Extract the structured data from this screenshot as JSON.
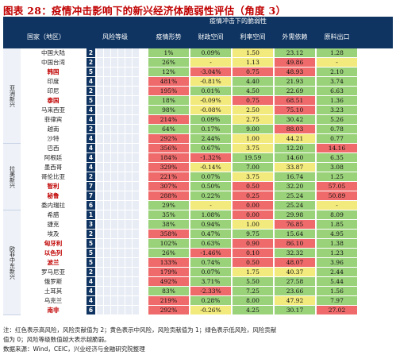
{
  "title": "图表 28：疫情冲击影响下的新兴经济体脆弱性评估（角度 3）",
  "header": {
    "group": "疫情冲击下的脆弱性",
    "region": "国家（地区）",
    "risk_level": "风险等级",
    "columns": [
      "疫情形势",
      "财政空间",
      "利率空间",
      "外需依赖",
      "原料出口"
    ]
  },
  "colors": {
    "green": "#9ad27a",
    "yellow": "#f2ea7c",
    "red": "#ef6b6b",
    "header": "#0f3461"
  },
  "groups": [
    {
      "name": "亚洲新兴",
      "rows": [
        {
          "country": "中国大陆",
          "level": "2",
          "highlight": false,
          "values": [
            "1%",
            "0.09%",
            "1.50",
            "23.12",
            "1.28"
          ],
          "c": [
            "g",
            "g",
            "y",
            "g",
            "g"
          ]
        },
        {
          "country": "中国台湾",
          "level": "2",
          "highlight": false,
          "values": [
            "26%",
            "-",
            "1.13",
            "49.86",
            "-"
          ],
          "c": [
            "g",
            "y",
            "y",
            "r",
            "y"
          ]
        },
        {
          "country": "韩国",
          "level": "5",
          "highlight": true,
          "values": [
            "12%",
            "-3.04%",
            "0.75",
            "48.93",
            "2.10"
          ],
          "c": [
            "g",
            "r",
            "r",
            "r",
            "g"
          ]
        },
        {
          "country": "印度",
          "level": "4",
          "highlight": false,
          "values": [
            "481%",
            "-0.81%",
            "4.40",
            "21.93",
            "3.74"
          ],
          "c": [
            "r",
            "y",
            "g",
            "g",
            "g"
          ]
        },
        {
          "country": "印尼",
          "level": "2",
          "highlight": false,
          "values": [
            "195%",
            "0.01%",
            "4.50",
            "22.69",
            "6.63"
          ],
          "c": [
            "r",
            "g",
            "g",
            "g",
            "g"
          ]
        },
        {
          "country": "泰国",
          "level": "5",
          "highlight": true,
          "values": [
            "18%",
            "-0.09%",
            "0.75",
            "68.51",
            "1.36"
          ],
          "c": [
            "g",
            "y",
            "r",
            "r",
            "g"
          ]
        },
        {
          "country": "马来西亚",
          "level": "4",
          "highlight": false,
          "values": [
            "98%",
            "-0.08%",
            "2.50",
            "75.10",
            "3.23"
          ],
          "c": [
            "g",
            "y",
            "y",
            "r",
            "g"
          ]
        },
        {
          "country": "菲律宾",
          "level": "4",
          "highlight": false,
          "values": [
            "214%",
            "0.09%",
            "2.75",
            "30.42",
            "5.26"
          ],
          "c": [
            "r",
            "g",
            "y",
            "g",
            "g"
          ]
        },
        {
          "country": "越南",
          "level": "2",
          "highlight": false,
          "values": [
            "64%",
            "0.17%",
            "9.00",
            "88.03",
            "0.78"
          ],
          "c": [
            "g",
            "g",
            "g",
            "r",
            "g"
          ]
        },
        {
          "country": "沙特",
          "level": "4",
          "highlight": false,
          "values": [
            "292%",
            "2.44%",
            "1.00",
            "44.21",
            "0.77"
          ],
          "c": [
            "r",
            "g",
            "y",
            "y",
            "g"
          ]
        }
      ]
    },
    {
      "name": "拉美新兴",
      "rows": [
        {
          "country": "巴西",
          "level": "4",
          "highlight": false,
          "values": [
            "356%",
            "0.67%",
            "3.75",
            "12.20",
            "14.16"
          ],
          "c": [
            "r",
            "g",
            "y",
            "g",
            "r"
          ]
        },
        {
          "country": "阿根廷",
          "level": "4",
          "highlight": false,
          "values": [
            "184%",
            "-1.32%",
            "19.59",
            "14.60",
            "6.35"
          ],
          "c": [
            "r",
            "r",
            "g",
            "g",
            "g"
          ]
        },
        {
          "country": "墨西哥",
          "level": "4",
          "highlight": false,
          "values": [
            "329%",
            "-0.14%",
            "7.00",
            "33.87",
            "3.08"
          ],
          "c": [
            "r",
            "y",
            "g",
            "y",
            "g"
          ]
        },
        {
          "country": "哥伦比亚",
          "level": "2",
          "highlight": false,
          "values": [
            "221%",
            "0.07%",
            "3.75",
            "16.74",
            "1.25"
          ],
          "c": [
            "r",
            "g",
            "y",
            "g",
            "g"
          ]
        },
        {
          "country": "智利",
          "level": "7",
          "highlight": true,
          "values": [
            "307%",
            "0.50%",
            "0.50",
            "32.20",
            "57.05"
          ],
          "c": [
            "r",
            "g",
            "r",
            "g",
            "r"
          ]
        },
        {
          "country": "秘鲁",
          "level": "7",
          "highlight": true,
          "values": [
            "288%",
            "0.22%",
            "0.25",
            "25.24",
            "50.89"
          ],
          "c": [
            "r",
            "g",
            "r",
            "g",
            "r"
          ]
        },
        {
          "country": "委内瑞拉",
          "level": "6",
          "highlight": false,
          "values": [
            "29%",
            "-",
            "0.00",
            "25.24",
            "-"
          ],
          "c": [
            "g",
            "y",
            "r",
            "g",
            "y"
          ]
        }
      ]
    },
    {
      "name": "欧非中东新兴",
      "rows": [
        {
          "country": "希腊",
          "level": "1",
          "highlight": false,
          "values": [
            "35%",
            "1.08%",
            "0.00",
            "29.98",
            "8.09"
          ],
          "c": [
            "g",
            "g",
            "r",
            "g",
            "g"
          ]
        },
        {
          "country": "捷克",
          "level": "3",
          "highlight": false,
          "values": [
            "38%",
            "0.94%",
            "1.00",
            "76.85",
            "1.85"
          ],
          "c": [
            "g",
            "g",
            "y",
            "r",
            "g"
          ]
        },
        {
          "country": "埃及",
          "level": "2",
          "highlight": false,
          "values": [
            "358%",
            "0.47%",
            "9.75",
            "15.64",
            "4.95"
          ],
          "c": [
            "r",
            "g",
            "g",
            "g",
            "g"
          ]
        },
        {
          "country": "匈牙利",
          "level": "5",
          "highlight": true,
          "values": [
            "102%",
            "0.63%",
            "0.90",
            "86.10",
            "1.38"
          ],
          "c": [
            "g",
            "g",
            "r",
            "r",
            "g"
          ]
        },
        {
          "country": "以色列",
          "level": "5",
          "highlight": true,
          "values": [
            "26%",
            "-1.46%",
            "0.10",
            "32.32",
            "1.23"
          ],
          "c": [
            "g",
            "r",
            "r",
            "g",
            "g"
          ]
        },
        {
          "country": "波兰",
          "level": "5",
          "highlight": true,
          "values": [
            "133%",
            "0.74%",
            "0.50",
            "48.07",
            "3.96"
          ],
          "c": [
            "r",
            "g",
            "r",
            "r",
            "g"
          ]
        },
        {
          "country": "罗马尼亚",
          "level": "2",
          "highlight": false,
          "values": [
            "179%",
            "0.07%",
            "1.75",
            "40.37",
            "2.44"
          ],
          "c": [
            "r",
            "g",
            "y",
            "y",
            "g"
          ]
        },
        {
          "country": "俄罗斯",
          "level": "4",
          "highlight": false,
          "values": [
            "492%",
            "3.71%",
            "5.50",
            "27.58",
            "5.44"
          ],
          "c": [
            "r",
            "g",
            "g",
            "g",
            "g"
          ]
        },
        {
          "country": "土耳其",
          "level": "4",
          "highlight": false,
          "values": [
            "83%",
            "-2.33%",
            "7.25",
            "23.66",
            "1.56"
          ],
          "c": [
            "g",
            "r",
            "g",
            "g",
            "g"
          ]
        },
        {
          "country": "乌克兰",
          "level": "4",
          "highlight": false,
          "values": [
            "219%",
            "0.28%",
            "8.00",
            "47.92",
            "7.97"
          ],
          "c": [
            "r",
            "g",
            "g",
            "y",
            "g"
          ]
        },
        {
          "country": "南非",
          "level": "6",
          "highlight": true,
          "values": [
            "292%",
            "-0.26%",
            "4.25",
            "30.17",
            "27.02"
          ],
          "c": [
            "r",
            "y",
            "g",
            "g",
            "r"
          ]
        }
      ]
    }
  ],
  "notes": [
    "注：红色表示高风险，风险贡献值为 2；黄色表示中风险，风险贡献值为 1；绿色表示低风险，风险贡献",
    "值为 0；风险等级数值越大表示越脆弱。",
    "数据来源：Wind，CEIC，兴业经济与金融研究院整理"
  ]
}
